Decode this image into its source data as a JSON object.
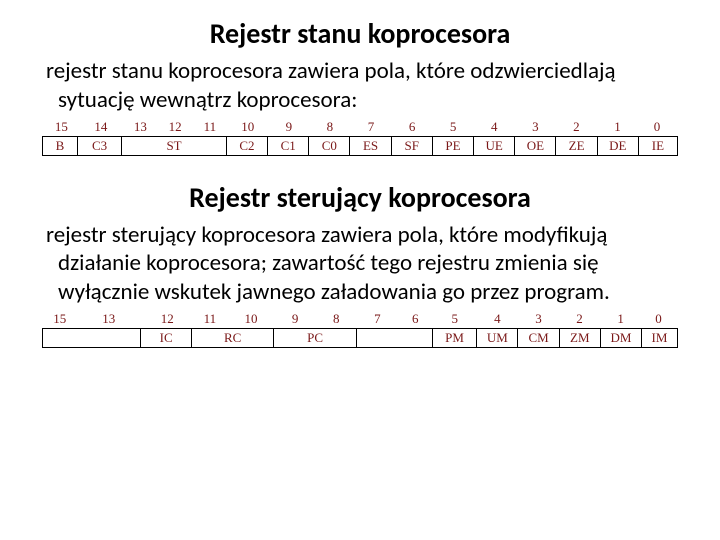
{
  "status": {
    "title": "Rejestr  stanu  koprocesora",
    "para": "rejestr stanu koprocesora zawiera pola, które odzwierciedlają sytuację wewnątrz koprocesora:",
    "bit_numbers": [
      "15",
      "14",
      "13",
      "12",
      "11",
      "10",
      "9",
      "8",
      "7",
      "6",
      "5",
      "4",
      "3",
      "2",
      "1",
      "0"
    ],
    "bit_widths_pct": [
      5.5,
      7.0,
      5.5,
      5.5,
      5.5,
      6.5,
      6.5,
      6.5,
      6.5,
      6.5,
      6.5,
      6.5,
      6.5,
      6.5,
      6.5,
      6.0
    ],
    "fields": [
      {
        "label": "B",
        "w": 5.5
      },
      {
        "label": "C3",
        "w": 7.0
      },
      {
        "label": "ST",
        "w": 16.5,
        "empty": false
      },
      {
        "label": "C2",
        "w": 6.5
      },
      {
        "label": "C1",
        "w": 6.5
      },
      {
        "label": "C0",
        "w": 6.5
      },
      {
        "label": "ES",
        "w": 6.5
      },
      {
        "label": "SF",
        "w": 6.5
      },
      {
        "label": "PE",
        "w": 6.5
      },
      {
        "label": "UE",
        "w": 6.5
      },
      {
        "label": "OE",
        "w": 6.5
      },
      {
        "label": "ZE",
        "w": 6.5
      },
      {
        "label": "DE",
        "w": 6.5
      },
      {
        "label": "IE",
        "w": 6.0
      }
    ],
    "label_color": "#7a1818"
  },
  "control": {
    "title": "Rejestr  sterujący  koprocesora",
    "para": "rejestr sterujący koprocesora zawiera pola, które modyfikują działanie koprocesora; zawartość tego rejestru zmienia się wyłącznie wskutek jawnego załadowania go przez program.",
    "bit_numbers": [
      "15",
      "13",
      "12",
      "11",
      "10",
      "9",
      "8",
      "7",
      "6",
      "5",
      "4",
      "3",
      "2",
      "1",
      "0"
    ],
    "bit_widths_pct": [
      5.0,
      10.5,
      8.0,
      5.5,
      7.5,
      6.5,
      6.5,
      6.5,
      5.5,
      7.0,
      6.5,
      6.5,
      6.5,
      6.5,
      5.5
    ],
    "fields": [
      {
        "label": "",
        "w": 15.5,
        "empty": true
      },
      {
        "label": "IC",
        "w": 8.0
      },
      {
        "label": "RC",
        "w": 13.0
      },
      {
        "label": "PC",
        "w": 13.0
      },
      {
        "label": "",
        "w": 12.0,
        "empty": true
      },
      {
        "label": "PM",
        "w": 7.0
      },
      {
        "label": "UM",
        "w": 6.5
      },
      {
        "label": "CM",
        "w": 6.5
      },
      {
        "label": "ZM",
        "w": 6.5
      },
      {
        "label": "DM",
        "w": 6.5
      },
      {
        "label": "IM",
        "w": 5.5
      }
    ],
    "label_color": "#7a1818"
  }
}
